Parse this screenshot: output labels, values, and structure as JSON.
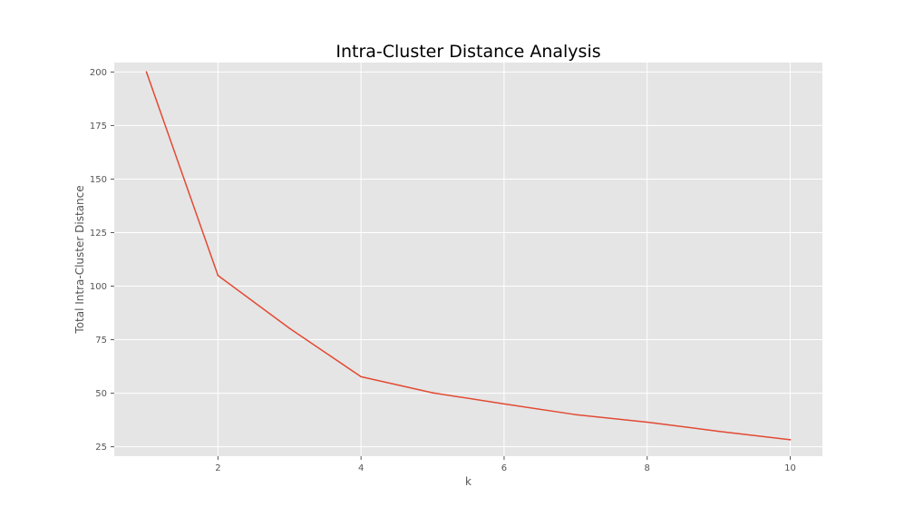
{
  "chart_data": {
    "type": "line",
    "title": "Intra-Cluster Distance Analysis",
    "xlabel": "k",
    "ylabel": "Total Intra-Cluster Distance",
    "xlim": [
      0.55,
      10.45
    ],
    "ylim": [
      20.6,
      204.4
    ],
    "xticks": [
      2,
      4,
      6,
      8,
      10
    ],
    "yticks": [
      25,
      50,
      75,
      100,
      125,
      150,
      175,
      200
    ],
    "grid": true,
    "series": [
      {
        "x": [
          1,
          2,
          3,
          4,
          5,
          6,
          7,
          8,
          9,
          10
        ],
        "y": [
          200,
          105,
          80.3,
          57.7,
          50.2,
          45,
          40,
          36.5,
          32.2,
          28.3
        ]
      }
    ],
    "colors": {
      "line": "#e24a33",
      "plot_background": "#e5e5e5",
      "grid": "#ffffff"
    }
  }
}
